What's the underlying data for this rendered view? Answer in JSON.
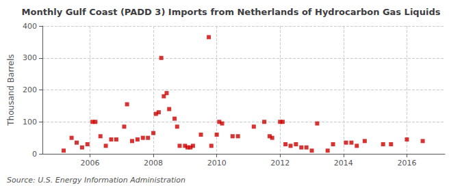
{
  "chart_data": {
    "type": "scatter",
    "title": "Monthly Gulf Coast (PADD 3) Imports from Netherlands of Hydrocarbon Gas Liquids",
    "ylabel": "Thousand Barrels",
    "annotations": [
      "Source: U.S. Energy Information Administration"
    ],
    "x": [
      2005.17,
      2005.42,
      2005.58,
      2005.75,
      2005.92,
      2006.08,
      2006.17,
      2006.33,
      2006.5,
      2006.67,
      2006.83,
      2007.08,
      2007.17,
      2007.33,
      2007.5,
      2007.67,
      2007.83,
      2008.0,
      2008.08,
      2008.17,
      2008.25,
      2008.33,
      2008.42,
      2008.5,
      2008.67,
      2008.75,
      2008.83,
      2009.0,
      2009.08,
      2009.17,
      2009.25,
      2009.5,
      2009.75,
      2009.83,
      2010.0,
      2010.08,
      2010.17,
      2010.5,
      2010.67,
      2011.17,
      2011.5,
      2011.67,
      2011.75,
      2012.0,
      2012.08,
      2012.17,
      2012.33,
      2012.5,
      2012.67,
      2012.83,
      2013.0,
      2013.17,
      2013.5,
      2013.67,
      2014.08,
      2014.25,
      2014.42,
      2014.67,
      2015.25,
      2015.5,
      2016.0,
      2016.5
    ],
    "values": [
      10,
      50,
      35,
      20,
      30,
      100,
      100,
      55,
      25,
      45,
      45,
      85,
      155,
      40,
      45,
      50,
      50,
      65,
      125,
      130,
      300,
      180,
      190,
      140,
      110,
      85,
      25,
      25,
      20,
      20,
      25,
      60,
      365,
      25,
      60,
      100,
      95,
      55,
      55,
      85,
      100,
      55,
      50,
      100,
      100,
      30,
      25,
      30,
      20,
      20,
      10,
      95,
      10,
      30,
      35,
      35,
      25,
      40,
      30,
      30,
      45,
      40
    ],
    "color": "#cc0000",
    "marker": "square",
    "xlim": [
      2004.5,
      2017.2
    ],
    "xticks": [
      2006,
      2008,
      2010,
      2012,
      2014,
      2016
    ],
    "ylim": [
      0,
      400
    ],
    "yticks": [
      0,
      100,
      200,
      300,
      400
    ],
    "grid": true
  }
}
